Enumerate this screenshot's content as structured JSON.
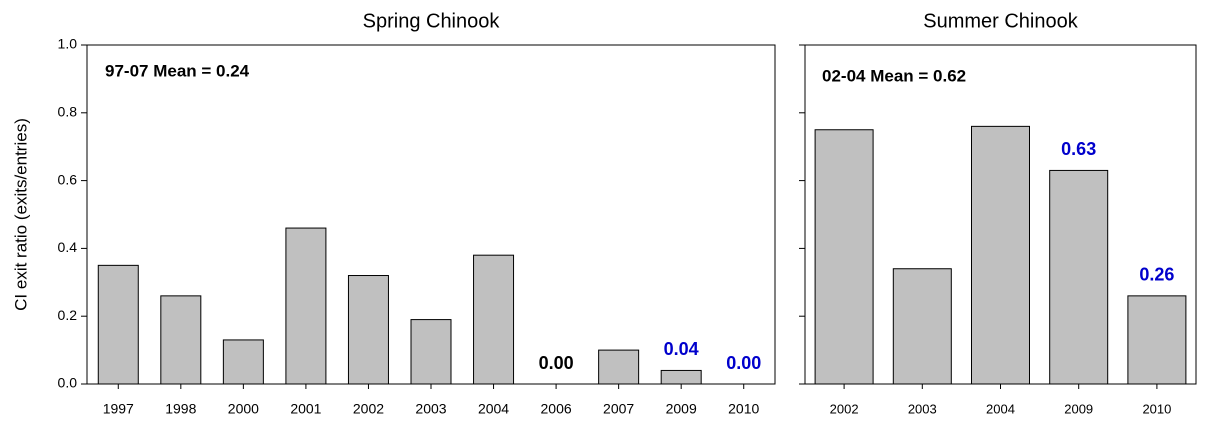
{
  "chart_data": [
    {
      "type": "bar",
      "title": "Spring Chinook",
      "y_label": "CI exit ratio (exits/entries)",
      "annotation": "97-07 Mean = 0.24",
      "categories": [
        "1997",
        "1998",
        "2000",
        "2001",
        "2002",
        "2003",
        "2004",
        "2006",
        "2007",
        "2009",
        "2010"
      ],
      "values": [
        0.35,
        0.26,
        0.13,
        0.46,
        0.32,
        0.19,
        0.38,
        0.0,
        0.1,
        0.04,
        0.0
      ],
      "value_labels": [
        null,
        null,
        null,
        null,
        null,
        null,
        null,
        "0.00",
        null,
        "0.04",
        "0.00"
      ],
      "value_label_colors": [
        null,
        null,
        null,
        null,
        null,
        null,
        null,
        "#000000",
        null,
        "#0000cc",
        "#0000cc"
      ],
      "color": "#c0c0c0",
      "ylim": [
        0,
        1.0
      ],
      "yticks": [
        {
          "value": 0,
          "label": "0.0"
        },
        {
          "value": 0.2,
          "label": "0.2"
        },
        {
          "value": 0.4,
          "label": "0.4"
        },
        {
          "value": 0.6,
          "label": "0.6"
        },
        {
          "value": 0.8,
          "label": "0.8"
        },
        {
          "value": 1.0,
          "label": "1.0"
        }
      ]
    },
    {
      "type": "bar",
      "title": "Summer Chinook",
      "annotation": "02-04 Mean = 0.62",
      "categories": [
        "2002",
        "2003",
        "2004",
        "2009",
        "2010"
      ],
      "values": [
        0.75,
        0.34,
        0.76,
        0.63,
        0.26
      ],
      "value_labels": [
        null,
        null,
        null,
        "0.63",
        "0.26"
      ],
      "value_label_colors": [
        null,
        null,
        null,
        "#0000cc",
        "#0000cc"
      ],
      "color": "#c0c0c0",
      "ylim": [
        0,
        1.0
      ],
      "yticks": [
        0,
        0.2,
        0.4,
        0.6,
        0.8,
        1.0
      ]
    }
  ]
}
